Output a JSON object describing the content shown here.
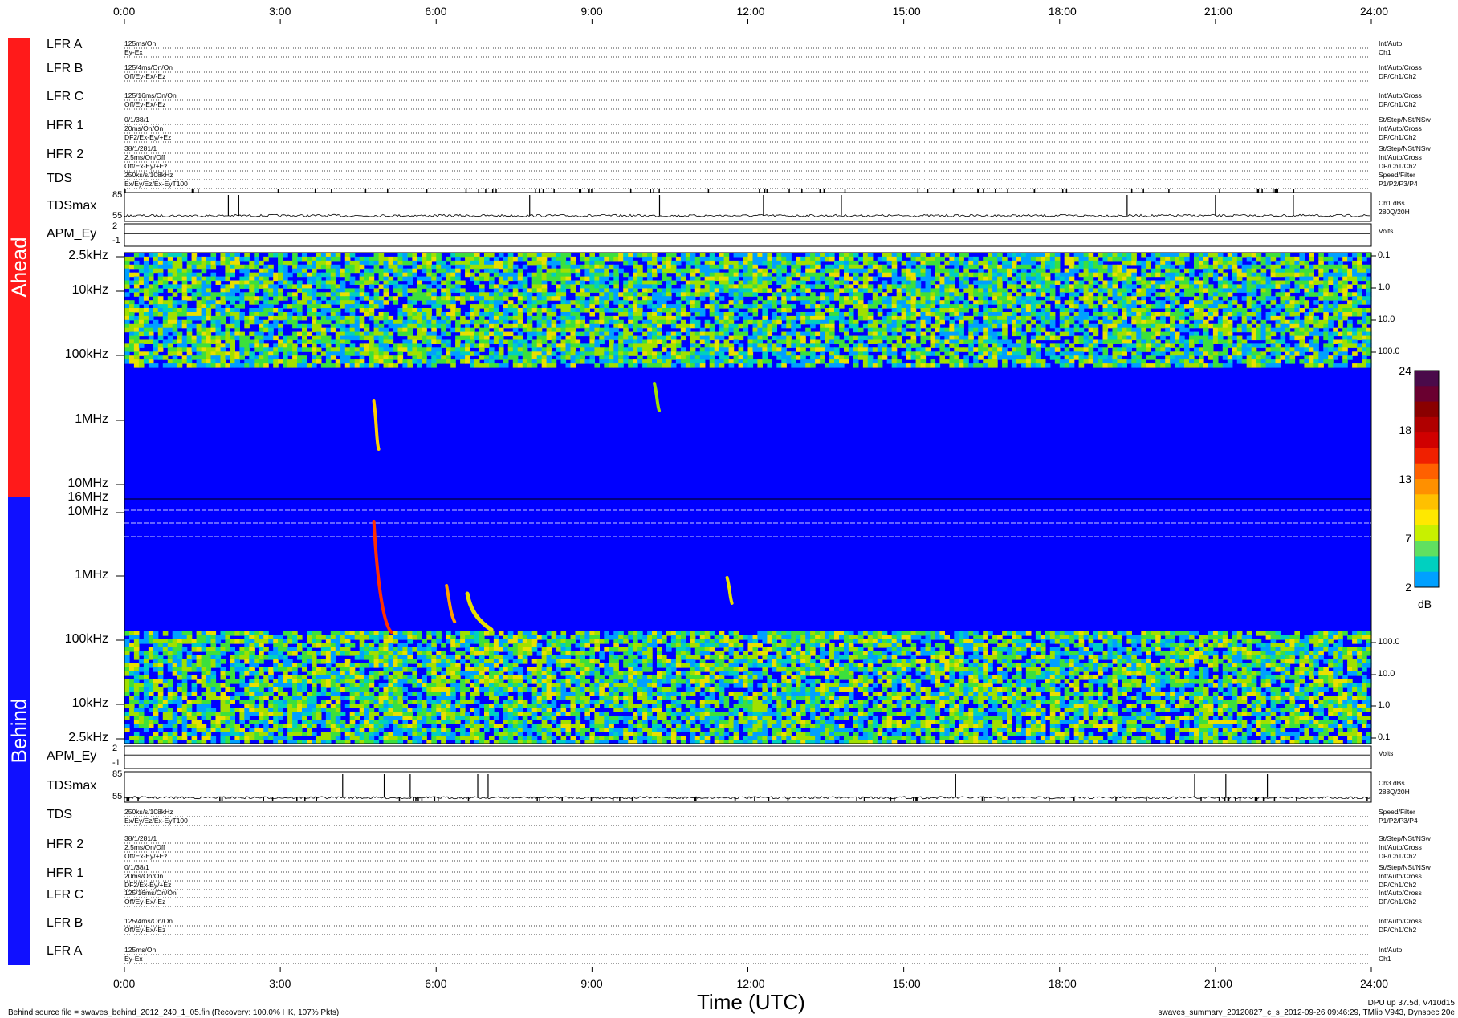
{
  "time_ticks": [
    "0:00",
    "3:00",
    "6:00",
    "9:00",
    "12:00",
    "15:00",
    "18:00",
    "21:00",
    "24:00"
  ],
  "xlabel": "Time (UTC)",
  "ahead_label": "Ahead",
  "behind_label": "Behind",
  "colors": {
    "ahead": "#ff0000",
    "behind": "#0000ff",
    "background": "#0000ff"
  },
  "ahead_rows": [
    {
      "name": "LFR A",
      "left": [
        "125ms/On",
        "Ey-Ex"
      ],
      "right": [
        "Int/Auto",
        "Ch1"
      ]
    },
    {
      "name": "LFR B",
      "left": [
        "125/4ms/On/On",
        "Off/Ey-Ex/-Ez"
      ],
      "right": [
        "Int/Auto/Cross",
        "DF/Ch1/Ch2"
      ]
    },
    {
      "name": "LFR C",
      "left": [
        "125/16ms/On/On",
        "Off/Ey-Ex/-Ez"
      ],
      "right": [
        "Int/Auto/Cross",
        "DF/Ch1/Ch2"
      ]
    },
    {
      "name": "HFR 1",
      "left": [
        "0/1/38/1",
        "20ms/On/On",
        "DF2/Ex-Ey/+Ez"
      ],
      "right": [
        "St/Step/NSt/NSw",
        "Int/Auto/Cross",
        "DF/Ch1/Ch2"
      ]
    },
    {
      "name": "HFR 2",
      "left": [
        "38/1/281/1",
        "2.5ms/On/Off",
        "Off/Ex-Ey/+Ez"
      ],
      "right": [
        "St/Step/NSt/NSw",
        "Int/Auto/Cross",
        "DF/Ch1/Ch2"
      ]
    },
    {
      "name": "TDS",
      "left": [
        "250ks/s/108kHz",
        "Ex/Ey/Ez/Ex-EyT100"
      ],
      "right": [
        "Speed/Filter",
        "P1/P2/P3/P4"
      ]
    }
  ],
  "behind_rows": [
    {
      "name": "TDS",
      "left": [
        "250ks/s/108kHz",
        "Ex/Ey/Ez/Ex-EyT100"
      ],
      "right": [
        "Speed/Filter",
        "P1/P2/P3/P4"
      ]
    },
    {
      "name": "HFR 2",
      "left": [
        "38/1/281/1",
        "2.5ms/On/Off",
        "Off/Ex-Ey/+Ez"
      ],
      "right": [
        "St/Step/NSt/NSw",
        "Int/Auto/Cross",
        "DF/Ch1/Ch2"
      ]
    },
    {
      "name": "HFR 1",
      "left": [
        "0/1/38/1",
        "20ms/On/On",
        "DF2/Ex-Ey/+Ez"
      ],
      "right": [
        "St/Step/NSt/NSw",
        "Int/Auto/Cross",
        "DF/Ch1/Ch2"
      ]
    },
    {
      "name": "LFR C",
      "left": [
        "125/16ms/On/On",
        "Off/Ey-Ex/-Ez"
      ],
      "right": [
        "Int/Auto/Cross",
        "DF/Ch1/Ch2"
      ]
    },
    {
      "name": "LFR B",
      "left": [
        "125/4ms/On/On",
        "Off/Ey-Ex/-Ez"
      ],
      "right": [
        "Int/Auto/Cross",
        "DF/Ch1/Ch2"
      ]
    },
    {
      "name": "LFR A",
      "left": [
        "125ms/On",
        "Ey-Ex"
      ],
      "right": [
        "Int/Auto",
        "Ch1"
      ]
    }
  ],
  "ahead_tdsmax": {
    "label": "TDSmax",
    "ticks": [
      "85",
      "55"
    ],
    "right": [
      "Ch1 dBs",
      "280Q/20H"
    ]
  },
  "ahead_apm": {
    "label": "APM_Ey",
    "ticks": [
      "2",
      "-1"
    ],
    "right": [
      "Volts"
    ]
  },
  "behind_apm": {
    "label": "APM_Ey",
    "ticks": [
      "2",
      "-1"
    ],
    "right": [
      "Volts"
    ]
  },
  "behind_tdsmax": {
    "label": "TDSmax",
    "ticks": [
      "85",
      "55"
    ],
    "right": [
      "Ch3 dBs",
      "288Q/20H"
    ]
  },
  "ahead_freq_ticks": [
    "2.5kHz",
    "10kHz",
    "100kHz",
    "1MHz",
    "10MHz"
  ],
  "mid_freq_tick": "16MHz",
  "behind_freq_ticks": [
    "10MHz",
    "1MHz",
    "100kHz",
    "10kHz",
    "2.5kHz"
  ],
  "ahead_right_ticks": [
    "0.1",
    "1.0",
    "10.0",
    "100.0"
  ],
  "behind_right_ticks": [
    "100.0",
    "10.0",
    "1.0",
    "0.1"
  ],
  "colorbar": {
    "ticks": [
      "24",
      "18",
      "13",
      "7",
      "2"
    ],
    "unit": "dB",
    "range": [
      2,
      24
    ]
  },
  "footer": {
    "left": "Behind source file = swaves_behind_2012_240_1_05.fin (Recovery: 100.0% HK, 107% Pkts)",
    "right1": "DPU up 37.5d, V410d15",
    "right2": "swaves_summary_20120827_c_s_2012-09-26 09:46:29, TMlib V943, Dynspec 20e"
  },
  "chart_data": {
    "type": "heatmap",
    "xlabel": "Time (UTC)",
    "xlim": [
      "0:00",
      "24:00"
    ],
    "panels": [
      {
        "name": "Ahead",
        "ylim_freq": [
          "2.5kHz",
          "16MHz"
        ],
        "y_scale": "log"
      },
      {
        "name": "Behind",
        "ylim_freq": [
          "2.5kHz",
          "16MHz"
        ],
        "y_scale": "log"
      }
    ],
    "colorbar_range_dB": [
      2,
      24
    ],
    "ahead_tdsmax_spike_hours": [
      2.0,
      2.2,
      7.8,
      10.3,
      12.3,
      13.8,
      19.3,
      21.0,
      22.5
    ],
    "behind_bursts": [
      {
        "start_hour": 4.8,
        "peak_freq": "1MHz"
      },
      {
        "start_hour": 6.2,
        "peak_freq": "1MHz"
      },
      {
        "start_hour": 6.6,
        "peak_freq": "1MHz"
      },
      {
        "start_hour": 11.6,
        "peak_freq": "1MHz"
      }
    ],
    "ahead_bursts": [
      {
        "start_hour": 4.8,
        "peak_freq": "1MHz"
      },
      {
        "start_hour": 10.2,
        "peak_freq": "1MHz"
      }
    ]
  }
}
